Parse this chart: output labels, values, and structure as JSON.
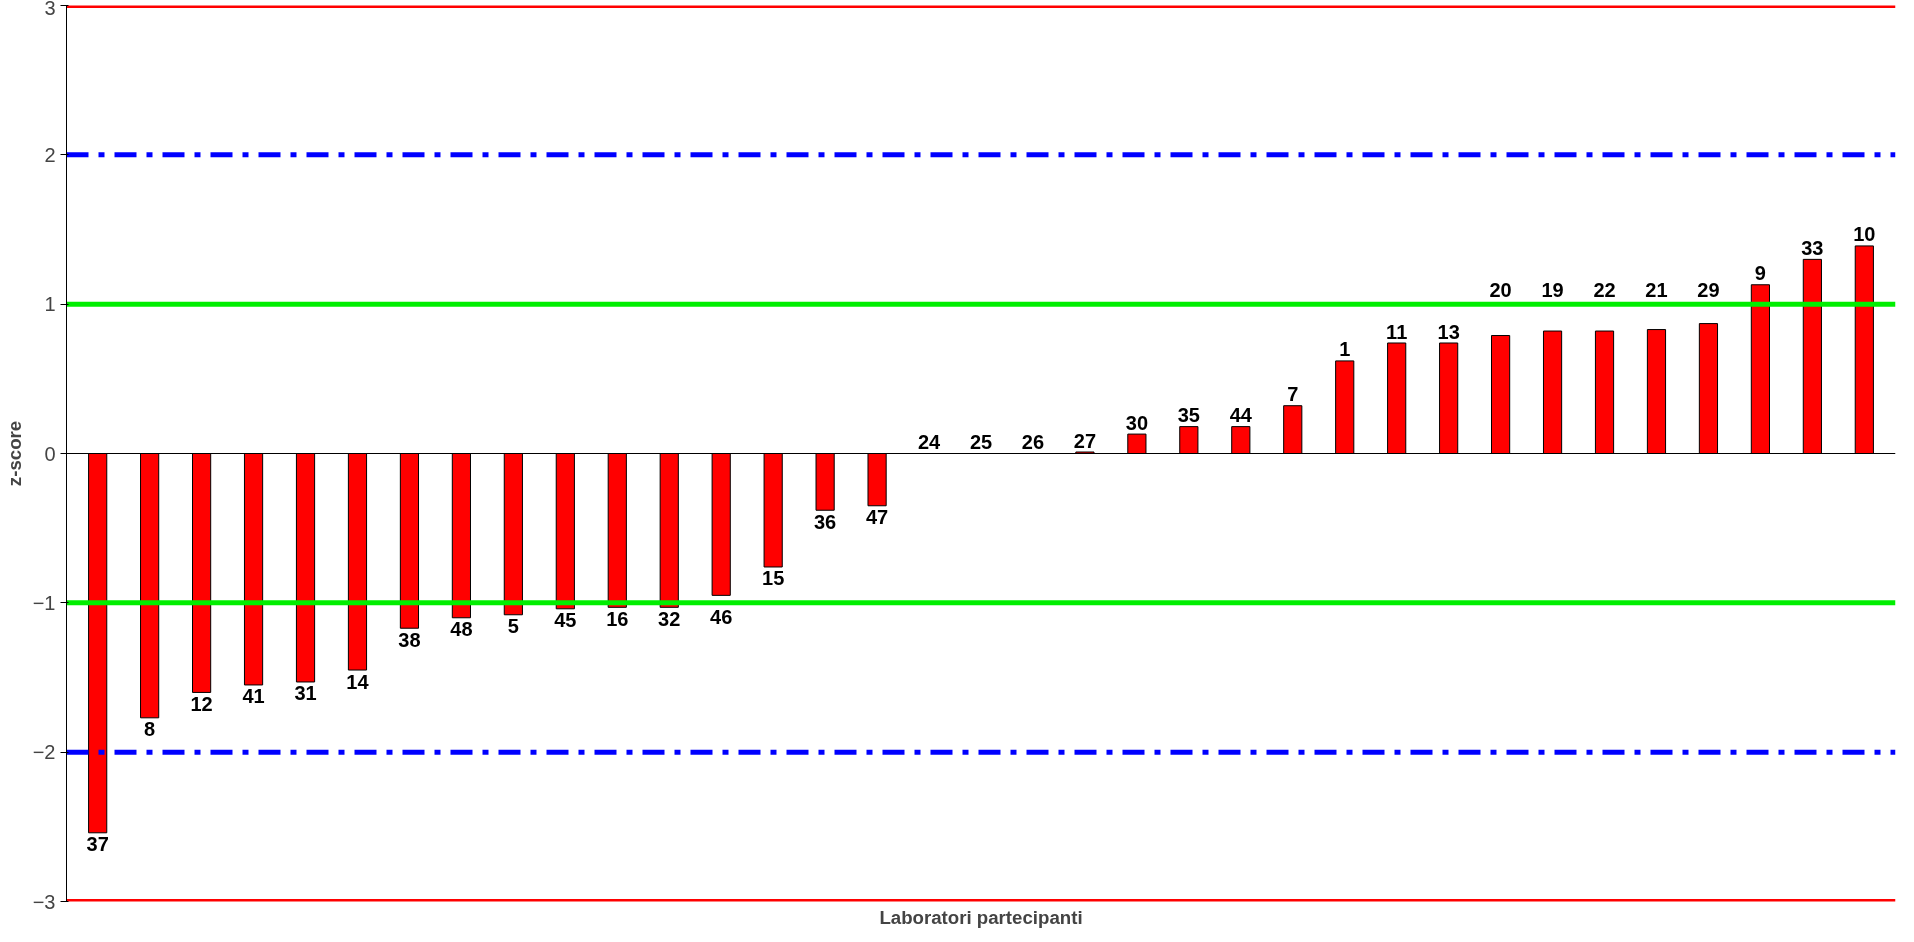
{
  "chart_data": {
    "type": "bar",
    "xlabel": "Laboratori partecipanti",
    "ylabel": "z-score",
    "categories": [
      "37",
      "8",
      "12",
      "41",
      "31",
      "14",
      "38",
      "48",
      "5",
      "45",
      "16",
      "32",
      "46",
      "15",
      "36",
      "47",
      "24",
      "25",
      "26",
      "27",
      "30",
      "35",
      "44",
      "7",
      "1",
      "11",
      "13",
      "20",
      "19",
      "22",
      "21",
      "29",
      "9",
      "33",
      "10"
    ],
    "values": [
      -2.54,
      -1.77,
      -1.6,
      -1.55,
      -1.53,
      -1.45,
      -1.17,
      -1.1,
      -1.08,
      -1.04,
      -1.03,
      -1.03,
      -0.95,
      -0.76,
      -0.38,
      -0.35,
      0,
      0,
      0,
      0.01,
      0.13,
      0.18,
      0.18,
      0.32,
      0.62,
      0.74,
      0.74,
      0.79,
      0.82,
      0.82,
      0.83,
      0.87,
      1.13,
      1.3,
      1.39
    ],
    "color": "#ff0000",
    "ylim": [
      -3,
      3
    ],
    "yticks": [
      -3,
      -2,
      -1,
      0,
      1,
      2,
      3
    ],
    "tick_labels": "y",
    "ref_lines": [
      {
        "axis": "y",
        "value": 3,
        "color": "#ff0000",
        "line_style": "solid"
      },
      {
        "axis": "y",
        "value": -3,
        "color": "#ff0000",
        "line_style": "solid"
      },
      {
        "axis": "y",
        "value": 2,
        "color": "#0000ff",
        "line_style": "dashdot"
      },
      {
        "axis": "y",
        "value": -2,
        "color": "#0000ff",
        "line_style": "dashdot"
      },
      {
        "axis": "y",
        "value": 1,
        "color": "#00ee00",
        "line_style": "solid"
      },
      {
        "axis": "y",
        "value": -1,
        "color": "#00ee00",
        "line_style": "solid"
      }
    ]
  }
}
